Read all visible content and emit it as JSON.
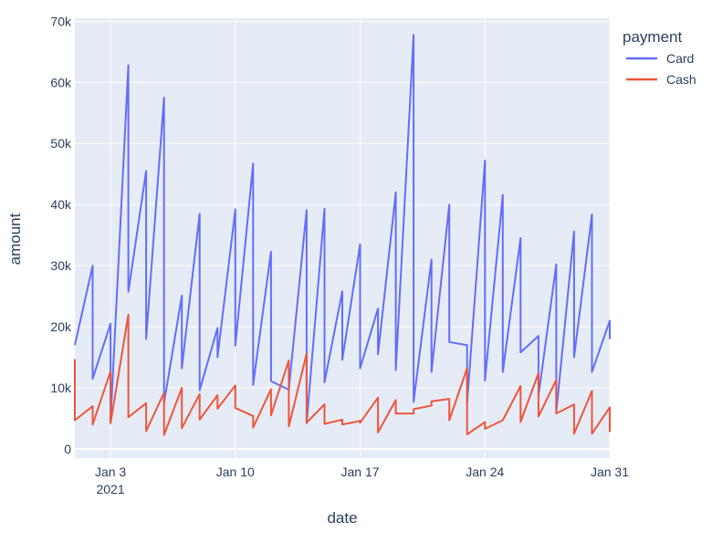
{
  "chart_data": {
    "type": "line",
    "xlabel": "date",
    "ylabel": "amount",
    "xlim": [
      "2021-01-01",
      "2021-01-31"
    ],
    "ylim": [
      -1500,
      70500
    ],
    "grid": true,
    "legend_title": "payment",
    "legend_position": "top-right outside",
    "x_ticks": [
      {
        "date": "2021-01-03",
        "label": "Jan 3",
        "sublabel": "2021"
      },
      {
        "date": "2021-01-10",
        "label": "Jan 10",
        "sublabel": ""
      },
      {
        "date": "2021-01-17",
        "label": "Jan 17",
        "sublabel": ""
      },
      {
        "date": "2021-01-24",
        "label": "Jan 24",
        "sublabel": ""
      },
      {
        "date": "2021-01-31",
        "label": "Jan 31",
        "sublabel": ""
      }
    ],
    "y_ticks": [
      {
        "value": 0,
        "label": "0"
      },
      {
        "value": 10000,
        "label": "10k"
      },
      {
        "value": 20000,
        "label": "20k"
      },
      {
        "value": 30000,
        "label": "30k"
      },
      {
        "value": 40000,
        "label": "40k"
      },
      {
        "value": 50000,
        "label": "50k"
      },
      {
        "value": 60000,
        "label": "60k"
      },
      {
        "value": 70000,
        "label": "70k"
      }
    ],
    "series": [
      {
        "name": "Card",
        "color": "#636efa",
        "points": [
          [
            "2021-01-01",
            17000
          ],
          [
            "2021-01-02",
            30000
          ],
          [
            "2021-01-02",
            11500
          ],
          [
            "2021-01-03",
            20500
          ],
          [
            "2021-01-03",
            4500
          ],
          [
            "2021-01-04",
            62800
          ],
          [
            "2021-01-04",
            25700
          ],
          [
            "2021-01-05",
            45500
          ],
          [
            "2021-01-05",
            18000
          ],
          [
            "2021-01-06",
            57500
          ],
          [
            "2021-01-06",
            7500
          ],
          [
            "2021-01-07",
            25100
          ],
          [
            "2021-01-07",
            13200
          ],
          [
            "2021-01-08",
            38500
          ],
          [
            "2021-01-08",
            9600
          ],
          [
            "2021-01-09",
            19800
          ],
          [
            "2021-01-09",
            15000
          ],
          [
            "2021-01-10",
            39200
          ],
          [
            "2021-01-10",
            16900
          ],
          [
            "2021-01-11",
            46700
          ],
          [
            "2021-01-11",
            10500
          ],
          [
            "2021-01-12",
            32300
          ],
          [
            "2021-01-12",
            11100
          ],
          [
            "2021-01-13",
            9700
          ],
          [
            "2021-01-14",
            39100
          ],
          [
            "2021-01-14",
            4200
          ],
          [
            "2021-01-15",
            39300
          ],
          [
            "2021-01-15",
            10900
          ],
          [
            "2021-01-16",
            25800
          ],
          [
            "2021-01-16",
            14600
          ],
          [
            "2021-01-17",
            33500
          ],
          [
            "2021-01-17",
            13200
          ],
          [
            "2021-01-18",
            23000
          ],
          [
            "2021-01-18",
            15500
          ],
          [
            "2021-01-19",
            42000
          ],
          [
            "2021-01-19",
            12900
          ],
          [
            "2021-01-20",
            67800
          ],
          [
            "2021-01-20",
            7700
          ],
          [
            "2021-01-21",
            31000
          ],
          [
            "2021-01-21",
            12600
          ],
          [
            "2021-01-22",
            40000
          ],
          [
            "2021-01-22",
            17500
          ],
          [
            "2021-01-23",
            17000
          ],
          [
            "2021-01-23",
            7500
          ],
          [
            "2021-01-24",
            47200
          ],
          [
            "2021-01-24",
            11200
          ],
          [
            "2021-01-25",
            41600
          ],
          [
            "2021-01-25",
            12600
          ],
          [
            "2021-01-26",
            34500
          ],
          [
            "2021-01-26",
            15800
          ],
          [
            "2021-01-27",
            18500
          ],
          [
            "2021-01-27",
            8700
          ],
          [
            "2021-01-28",
            30200
          ],
          [
            "2021-01-28",
            6000
          ],
          [
            "2021-01-29",
            35600
          ],
          [
            "2021-01-29",
            15000
          ],
          [
            "2021-01-30",
            38400
          ],
          [
            "2021-01-30",
            12600
          ],
          [
            "2021-01-31",
            21000
          ],
          [
            "2021-01-31",
            18000
          ]
        ]
      },
      {
        "name": "Cash",
        "color": "#ef553b",
        "points": [
          [
            "2021-01-01",
            14700
          ],
          [
            "2021-01-01",
            4700
          ],
          [
            "2021-01-02",
            7000
          ],
          [
            "2021-01-02",
            4000
          ],
          [
            "2021-01-03",
            12700
          ],
          [
            "2021-01-03",
            4200
          ],
          [
            "2021-01-04",
            22000
          ],
          [
            "2021-01-04",
            5200
          ],
          [
            "2021-01-05",
            7500
          ],
          [
            "2021-01-05",
            2900
          ],
          [
            "2021-01-06",
            9200
          ],
          [
            "2021-01-06",
            2300
          ],
          [
            "2021-01-07",
            10000
          ],
          [
            "2021-01-07",
            3400
          ],
          [
            "2021-01-08",
            9000
          ],
          [
            "2021-01-08",
            4800
          ],
          [
            "2021-01-09",
            8800
          ],
          [
            "2021-01-09",
            6600
          ],
          [
            "2021-01-10",
            10400
          ],
          [
            "2021-01-10",
            6700
          ],
          [
            "2021-01-11",
            5400
          ],
          [
            "2021-01-11",
            3500
          ],
          [
            "2021-01-12",
            9800
          ],
          [
            "2021-01-12",
            5500
          ],
          [
            "2021-01-13",
            14500
          ],
          [
            "2021-01-13",
            3700
          ],
          [
            "2021-01-14",
            15600
          ],
          [
            "2021-01-14",
            4300
          ],
          [
            "2021-01-15",
            7300
          ],
          [
            "2021-01-15",
            4100
          ],
          [
            "2021-01-16",
            4800
          ],
          [
            "2021-01-16",
            4000
          ],
          [
            "2021-01-17",
            4600
          ],
          [
            "2021-01-17",
            4300
          ],
          [
            "2021-01-18",
            8400
          ],
          [
            "2021-01-18",
            2700
          ],
          [
            "2021-01-19",
            8000
          ],
          [
            "2021-01-19",
            5800
          ],
          [
            "2021-01-20",
            5800
          ],
          [
            "2021-01-20",
            6500
          ],
          [
            "2021-01-21",
            7100
          ],
          [
            "2021-01-21",
            7800
          ],
          [
            "2021-01-22",
            8200
          ],
          [
            "2021-01-22",
            4700
          ],
          [
            "2021-01-23",
            13200
          ],
          [
            "2021-01-23",
            2400
          ],
          [
            "2021-01-24",
            4400
          ],
          [
            "2021-01-24",
            3300
          ],
          [
            "2021-01-25",
            4700
          ],
          [
            "2021-01-26",
            10300
          ],
          [
            "2021-01-26",
            4400
          ],
          [
            "2021-01-27",
            12400
          ],
          [
            "2021-01-27",
            5300
          ],
          [
            "2021-01-28",
            11300
          ],
          [
            "2021-01-28",
            5800
          ],
          [
            "2021-01-29",
            7300
          ],
          [
            "2021-01-29",
            2500
          ],
          [
            "2021-01-30",
            9500
          ],
          [
            "2021-01-30",
            2500
          ],
          [
            "2021-01-31",
            6800
          ],
          [
            "2021-01-31",
            2800
          ]
        ]
      }
    ]
  }
}
